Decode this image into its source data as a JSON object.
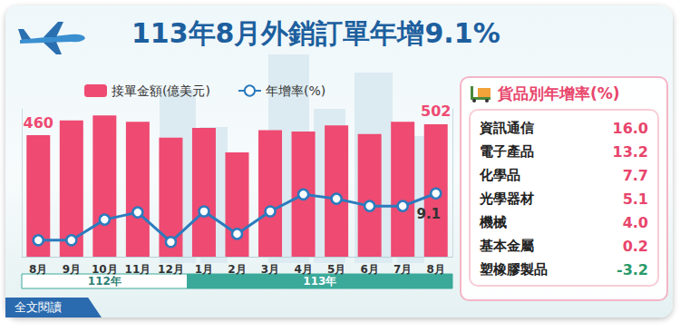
{
  "chart_data": [
    {
      "type": "bar",
      "title": "113年8月外銷訂單年增9.1%",
      "categories": [
        "8月",
        "9月",
        "10月",
        "11月",
        "12月",
        "1月",
        "2月",
        "3月",
        "4月",
        "5月",
        "6月",
        "7月",
        "8月"
      ],
      "period_labels": [
        "112年",
        "113年"
      ],
      "period_lengths": [
        5,
        8
      ],
      "series": [
        {
          "name": "接單金額(億美元)",
          "type": "bar",
          "color": "#ee4a72",
          "values": [
            460,
            516,
            535,
            511,
            451,
            488,
            395,
            479,
            474,
            497,
            465,
            511,
            502
          ],
          "value_labels": [
            "460",
            null,
            null,
            null,
            null,
            null,
            null,
            null,
            null,
            null,
            null,
            null,
            "502"
          ]
        },
        {
          "name": "年增率(%)",
          "type": "line",
          "axis": "y2",
          "color": "#2b7bbd",
          "marker": "circle",
          "values": [
            -10.2,
            -10.2,
            -1.7,
            1.3,
            -10.9,
            1.7,
            -7.6,
            1.7,
            8.7,
            6.9,
            3.9,
            3.9,
            9.1
          ],
          "value_labels": [
            null,
            null,
            null,
            null,
            null,
            null,
            null,
            null,
            null,
            null,
            null,
            null,
            "9.1"
          ]
        }
      ],
      "ylim": [
        0,
        560
      ],
      "y2lim": [
        -17,
        44
      ],
      "tick_labels": "x",
      "grid": false,
      "legend": "top-left",
      "data_labels": true
    },
    {
      "type": "table",
      "title": "貨品別年增率(%)",
      "categories": [
        "資訊通信",
        "電子產品",
        "化學品",
        "光學器材",
        "機械",
        "基本金屬",
        "塑橡膠製品"
      ],
      "values": [
        16.0,
        13.2,
        7.7,
        5.1,
        4.0,
        0.2,
        -3.2
      ],
      "value_labels": [
        "16.0",
        "13.2",
        "7.7",
        "5.1",
        "4.0",
        "0.2",
        "-3.2"
      ]
    }
  ],
  "footer_button": "全文閱讀"
}
